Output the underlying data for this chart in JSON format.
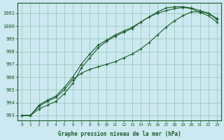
{
  "xlabel": "Graphe pression niveau de la mer (hPa)",
  "background_color": "#cce8f0",
  "grid_color": "#99ccbb",
  "line_color": "#1a5c2a",
  "xlim": [
    -0.5,
    23.5
  ],
  "ylim": [
    992.6,
    1001.8
  ],
  "yticks": [
    993,
    994,
    995,
    996,
    997,
    998,
    999,
    1000,
    1001
  ],
  "xticks": [
    0,
    1,
    2,
    3,
    4,
    5,
    6,
    7,
    8,
    9,
    10,
    11,
    12,
    13,
    14,
    15,
    16,
    17,
    18,
    19,
    20,
    21,
    22,
    23
  ],
  "series": [
    [
      993.0,
      993.0,
      993.5,
      993.8,
      994.1,
      994.7,
      995.5,
      996.7,
      997.5,
      998.3,
      998.8,
      999.2,
      999.5,
      999.8,
      1000.3,
      1000.7,
      1001.1,
      1001.4,
      1001.5,
      1001.5,
      1001.4,
      1001.2,
      1001.0,
      1000.6
    ],
    [
      993.0,
      993.0,
      993.7,
      994.1,
      994.4,
      995.0,
      995.8,
      996.3,
      996.6,
      996.8,
      997.0,
      997.2,
      997.5,
      997.8,
      998.2,
      998.7,
      999.3,
      999.9,
      1000.4,
      1000.8,
      1001.1,
      1001.1,
      1001.0,
      1000.5
    ],
    [
      993.0,
      993.0,
      993.8,
      994.2,
      994.5,
      995.2,
      996.0,
      997.0,
      997.8,
      998.5,
      998.9,
      999.3,
      999.6,
      999.9,
      1000.3,
      1000.7,
      1001.0,
      1001.2,
      1001.35,
      1001.45,
      1001.35,
      1001.05,
      1000.8,
      1000.3
    ]
  ]
}
